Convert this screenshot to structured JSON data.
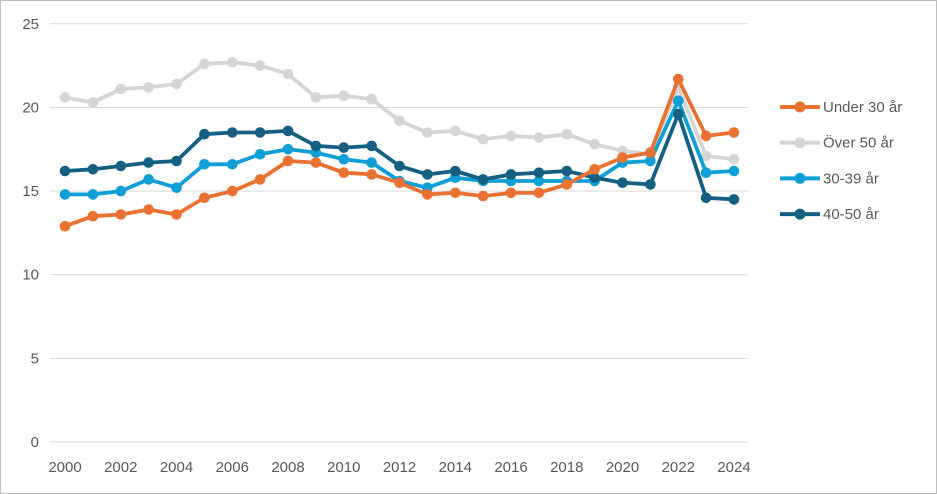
{
  "chart_data": {
    "type": "line",
    "title": "",
    "xlabel": "",
    "ylabel": "",
    "x": [
      2000,
      2001,
      2002,
      2003,
      2004,
      2005,
      2006,
      2007,
      2008,
      2009,
      2010,
      2011,
      2012,
      2013,
      2014,
      2015,
      2016,
      2017,
      2018,
      2019,
      2020,
      2021,
      2022,
      2023,
      2024
    ],
    "x_tick_years": [
      2000,
      2002,
      2004,
      2006,
      2008,
      2010,
      2012,
      2014,
      2016,
      2018,
      2020,
      2022,
      2024
    ],
    "ylim": [
      0,
      25
    ],
    "y_ticks": [
      0,
      5,
      10,
      15,
      20,
      25
    ],
    "grid": "horizontal",
    "gridline_color": "#d9d9d9",
    "axis_text_color": "#595959",
    "legend_position": "right",
    "marker": "circle",
    "series": [
      {
        "name": "Under 30 år",
        "color": "#E97132",
        "values": [
          12.9,
          13.5,
          13.6,
          13.9,
          13.6,
          14.6,
          15.0,
          15.7,
          16.8,
          16.7,
          16.1,
          16.0,
          15.5,
          14.8,
          14.9,
          14.7,
          14.9,
          14.9,
          15.4,
          16.3,
          17.0,
          17.3,
          21.7,
          18.3,
          18.5
        ]
      },
      {
        "name": "Över 50 år",
        "color": "#D5D5D5",
        "values": [
          20.6,
          20.3,
          21.1,
          21.2,
          21.4,
          22.6,
          22.7,
          22.5,
          22.0,
          20.6,
          20.7,
          20.5,
          19.2,
          18.5,
          18.6,
          18.1,
          18.3,
          18.2,
          18.4,
          17.8,
          17.4,
          17.2,
          21.2,
          17.1,
          16.9
        ]
      },
      {
        "name": "30-39 år",
        "color": "#0F9ED5",
        "values": [
          14.8,
          14.8,
          15.0,
          15.7,
          15.2,
          16.6,
          16.6,
          17.2,
          17.5,
          17.3,
          16.9,
          16.7,
          15.6,
          15.2,
          15.8,
          15.6,
          15.6,
          15.6,
          15.6,
          15.6,
          16.7,
          16.8,
          20.4,
          16.1,
          16.2
        ]
      },
      {
        "name": "40-50 år",
        "color": "#156082",
        "values": [
          16.2,
          16.3,
          16.5,
          16.7,
          16.8,
          18.4,
          18.5,
          18.5,
          18.6,
          17.7,
          17.6,
          17.7,
          16.5,
          16.0,
          16.2,
          15.7,
          16.0,
          16.1,
          16.2,
          15.8,
          15.5,
          15.4,
          19.6,
          14.6,
          14.5
        ]
      }
    ],
    "legend_order": [
      "Under 30 år",
      "Över 50 år",
      "30-39 år",
      "40-50 år"
    ],
    "draw_order": [
      "Över 50 år",
      "30-39 år",
      "40-50 år",
      "Under 30 år"
    ]
  }
}
